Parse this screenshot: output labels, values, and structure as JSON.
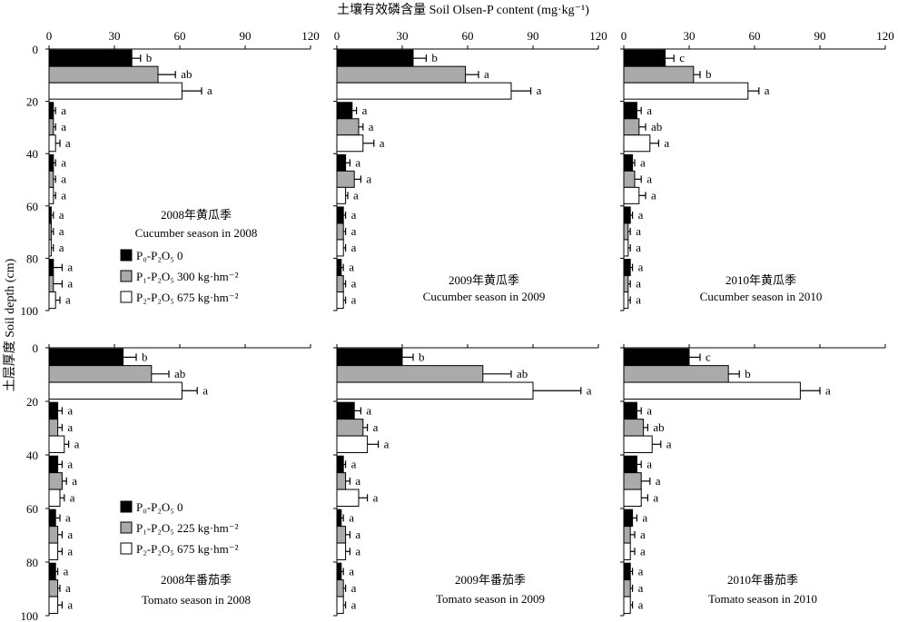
{
  "figure": {
    "top_title": "土壤有效磷含量 Soil Olsen-P content (mg·kg⁻¹)",
    "y_axis_title": "土层厚度 Soil depth (cm)"
  },
  "chart_data": [
    {
      "type": "bar",
      "orientation": "horizontal",
      "id": "p1",
      "title": "2008年黄瓜季",
      "subtitle": "Cucumber season in 2008",
      "xlim": [
        0,
        120
      ],
      "xticks": [
        "0",
        "30",
        "60",
        "90",
        "120"
      ],
      "ylim": [
        0,
        100
      ],
      "yticks": [
        "0",
        "20",
        "40",
        "60",
        "80",
        "100"
      ],
      "show_yticks": true,
      "legend": [
        "P₀-P₂O₅ 0",
        "P₁-P₂O₅ 300 kg·hm⁻²",
        "P₂-P₂O₅ 675 kg·hm⁻²"
      ],
      "layers": [
        "0-20",
        "20-40",
        "40-60",
        "60-80",
        "80-100"
      ],
      "series": [
        {
          "name": "P₀-P₂O₅ 0",
          "color": "#000000",
          "values": [
            38,
            2,
            2,
            1,
            2
          ],
          "errors": [
            4,
            1,
            1,
            1,
            4
          ],
          "letters": [
            "b",
            "a",
            "a",
            "a",
            "a"
          ]
        },
        {
          "name": "P₁-P₂O₅ 300 kg·hm⁻²",
          "color": "#aaaaaa",
          "values": [
            50,
            2,
            2,
            1,
            2
          ],
          "errors": [
            8,
            1,
            1,
            1,
            4
          ],
          "letters": [
            "ab",
            "a",
            "a",
            "a",
            "a"
          ]
        },
        {
          "name": "P₂-P₂O₅ 675 kg·hm⁻²",
          "color": "#ffffff",
          "values": [
            61,
            3,
            2,
            1,
            3
          ],
          "errors": [
            9,
            2,
            1,
            1,
            2
          ],
          "letters": [
            "a",
            "a",
            "a",
            "a",
            "a"
          ]
        }
      ]
    },
    {
      "type": "bar",
      "orientation": "horizontal",
      "id": "p2",
      "title": "2009年黄瓜季",
      "subtitle": "Cucumber season in 2009",
      "xlim": [
        0,
        120
      ],
      "xticks": [
        "0",
        "30",
        "60",
        "90",
        "120"
      ],
      "ylim": [
        0,
        100
      ],
      "yticks": [
        "0",
        "20",
        "40",
        "60",
        "80",
        "100"
      ],
      "show_yticks": false,
      "layers": [
        "0-20",
        "20-40",
        "40-60",
        "60-80",
        "80-100"
      ],
      "series": [
        {
          "name": "P₀-P₂O₅ 0",
          "color": "#000000",
          "values": [
            35,
            7,
            4,
            3,
            2
          ],
          "errors": [
            6,
            2,
            2,
            1,
            1
          ],
          "letters": [
            "b",
            "a",
            "a",
            "a",
            "a"
          ]
        },
        {
          "name": "P₁-P₂O₅ 300 kg·hm⁻²",
          "color": "#aaaaaa",
          "values": [
            59,
            10,
            8,
            3,
            3
          ],
          "errors": [
            6,
            2,
            3,
            1,
            1
          ],
          "letters": [
            "a",
            "a",
            "a",
            "a",
            "a"
          ]
        },
        {
          "name": "P₂-P₂O₅ 675 kg·hm⁻²",
          "color": "#ffffff",
          "values": [
            80,
            12,
            4,
            3,
            3
          ],
          "errors": [
            9,
            5,
            1,
            1,
            1
          ],
          "letters": [
            "a",
            "a",
            "a",
            "a",
            "a"
          ]
        }
      ]
    },
    {
      "type": "bar",
      "orientation": "horizontal",
      "id": "p3",
      "title": "2010年黄瓜季",
      "subtitle": "Cucumber season in 2010",
      "xlim": [
        0,
        120
      ],
      "xticks": [
        "0",
        "30",
        "60",
        "90",
        "120"
      ],
      "ylim": [
        0,
        100
      ],
      "yticks": [
        "0",
        "20",
        "40",
        "60",
        "80",
        "100"
      ],
      "show_yticks": false,
      "layers": [
        "0-20",
        "20-40",
        "40-60",
        "60-80",
        "80-100"
      ],
      "series": [
        {
          "name": "P₀-P₂O₅ 0",
          "color": "#000000",
          "values": [
            19,
            6,
            4,
            3,
            3
          ],
          "errors": [
            4,
            2,
            1,
            1,
            1
          ],
          "letters": [
            "c",
            "a",
            "a",
            "a",
            "a"
          ]
        },
        {
          "name": "P₁-P₂O₅ 300 kg·hm⁻²",
          "color": "#aaaaaa",
          "values": [
            32,
            7,
            5,
            2,
            2
          ],
          "errors": [
            3,
            3,
            3,
            1,
            1
          ],
          "letters": [
            "b",
            "ab",
            "a",
            "a",
            "a"
          ]
        },
        {
          "name": "P₂-P₂O₅ 675 kg·hm⁻²",
          "color": "#ffffff",
          "values": [
            57,
            12,
            7,
            2,
            2
          ],
          "errors": [
            5,
            4,
            3,
            1,
            1
          ],
          "letters": [
            "a",
            "a",
            "a",
            "a",
            "a"
          ]
        }
      ]
    },
    {
      "type": "bar",
      "orientation": "horizontal",
      "id": "p4",
      "title": "2008年番茄季",
      "subtitle": "Tomato season in 2008",
      "xlim": [
        0,
        120
      ],
      "xticks": [],
      "ylim": [
        0,
        100
      ],
      "yticks": [
        "0",
        "20",
        "40",
        "60",
        "80",
        "100"
      ],
      "show_yticks": true,
      "legend": [
        "P₀-P₂O₅ 0",
        "P₁-P₂O₅ 225 kg·hm⁻²",
        "P₂-P₂O₅ 675 kg·hm⁻²"
      ],
      "layers": [
        "0-20",
        "20-40",
        "40-60",
        "60-80",
        "80-100"
      ],
      "series": [
        {
          "name": "P₀-P₂O₅ 0",
          "color": "#000000",
          "values": [
            34,
            4,
            4,
            3,
            3
          ],
          "errors": [
            6,
            2,
            2,
            2,
            1
          ],
          "letters": [
            "b",
            "a",
            "a",
            "a",
            "a"
          ]
        },
        {
          "name": "P₁-P₂O₅ 225 kg·hm⁻²",
          "color": "#aaaaaa",
          "values": [
            47,
            4,
            6,
            4,
            4
          ],
          "errors": [
            8,
            2,
            2,
            2,
            1
          ],
          "letters": [
            "ab",
            "a",
            "a",
            "a",
            "a"
          ]
        },
        {
          "name": "P₂-P₂O₅ 675 kg·hm⁻²",
          "color": "#ffffff",
          "values": [
            61,
            7,
            5,
            4,
            4
          ],
          "errors": [
            7,
            2,
            2,
            2,
            2
          ],
          "letters": [
            "a",
            "a",
            "a",
            "a",
            "a"
          ]
        }
      ]
    },
    {
      "type": "bar",
      "orientation": "horizontal",
      "id": "p5",
      "title": "2009年番茄季",
      "subtitle": "Tomato season in 2009",
      "xlim": [
        0,
        120
      ],
      "xticks": [],
      "ylim": [
        0,
        100
      ],
      "yticks": [
        "0",
        "20",
        "40",
        "60",
        "80",
        "100"
      ],
      "show_yticks": false,
      "layers": [
        "0-20",
        "20-40",
        "40-60",
        "60-80",
        "80-100"
      ],
      "series": [
        {
          "name": "P₀-P₂O₅ 0",
          "color": "#000000",
          "values": [
            30,
            8,
            3,
            2,
            2
          ],
          "errors": [
            5,
            3,
            1,
            1,
            1
          ],
          "letters": [
            "b",
            "a",
            "a",
            "a",
            "a"
          ]
        },
        {
          "name": "P₁-P₂O₅ 225 kg·hm⁻²",
          "color": "#aaaaaa",
          "values": [
            67,
            12,
            4,
            4,
            3
          ],
          "errors": [
            13,
            2,
            2,
            2,
            1
          ],
          "letters": [
            "ab",
            "a",
            "a",
            "a",
            "a"
          ]
        },
        {
          "name": "P₂-P₂O₅ 675 kg·hm⁻²",
          "color": "#ffffff",
          "values": [
            90,
            14,
            10,
            4,
            3
          ],
          "errors": [
            22,
            5,
            4,
            2,
            1
          ],
          "letters": [
            "a",
            "a",
            "a",
            "a",
            "a"
          ]
        }
      ]
    },
    {
      "type": "bar",
      "orientation": "horizontal",
      "id": "p6",
      "title": "2010年番茄季",
      "subtitle": "Tomato season in 2010",
      "xlim": [
        0,
        120
      ],
      "xticks": [],
      "ylim": [
        0,
        100
      ],
      "yticks": [
        "0",
        "20",
        "40",
        "60",
        "80",
        "100"
      ],
      "show_yticks": false,
      "layers": [
        "0-20",
        "20-40",
        "40-60",
        "60-80",
        "80-100"
      ],
      "series": [
        {
          "name": "P₀-P₂O₅ 0",
          "color": "#000000",
          "values": [
            30,
            6,
            6,
            4,
            3
          ],
          "errors": [
            5,
            2,
            2,
            2,
            1
          ],
          "letters": [
            "c",
            "a",
            "a",
            "a",
            "a"
          ]
        },
        {
          "name": "P₁-P₂O₅ 225 kg·hm⁻²",
          "color": "#aaaaaa",
          "values": [
            48,
            9,
            8,
            3,
            3
          ],
          "errors": [
            5,
            2,
            4,
            2,
            1
          ],
          "letters": [
            "b",
            "ab",
            "a",
            "a",
            "a"
          ]
        },
        {
          "name": "P₂-P₂O₅ 675 kg·hm⁻²",
          "color": "#ffffff",
          "values": [
            81,
            13,
            8,
            3,
            3
          ],
          "errors": [
            9,
            4,
            3,
            2,
            1
          ],
          "letters": [
            "a",
            "a",
            "a",
            "a",
            "a"
          ]
        }
      ]
    }
  ]
}
